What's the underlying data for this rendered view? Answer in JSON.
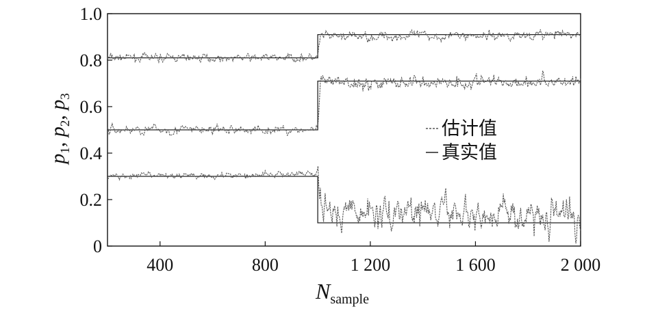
{
  "chart_data": {
    "type": "line",
    "xlabel": "N",
    "xlabel_sub": "sample",
    "ylabel": [
      "p",
      "1",
      ", ",
      "p",
      "2",
      ", ",
      "p",
      "3"
    ],
    "xlim": [
      200,
      2000
    ],
    "ylim": [
      0,
      1.0
    ],
    "xticks": [
      400,
      800,
      1200,
      1600,
      2000
    ],
    "xtick_labels": [
      "400",
      "800",
      "1 200",
      "1 600",
      "2 000"
    ],
    "yticks": [
      0,
      0.2,
      0.4,
      0.6,
      0.8,
      1.0
    ],
    "ytick_labels": [
      "0",
      "0.2",
      "0.4",
      "0.6",
      "0.8",
      "1.0"
    ],
    "legend": [
      {
        "label": "估计值",
        "style": "dashed"
      },
      {
        "label": "真实值",
        "style": "solid"
      }
    ],
    "legend_position": "center-right",
    "noise_seed": 7,
    "series": [
      {
        "role": "true",
        "points": [
          [
            200,
            0.81
          ],
          [
            1000,
            0.81
          ],
          [
            1000,
            0.91
          ],
          [
            2000,
            0.91
          ]
        ]
      },
      {
        "role": "true",
        "points": [
          [
            200,
            0.5
          ],
          [
            1000,
            0.5
          ],
          [
            1000,
            0.71
          ],
          [
            2000,
            0.71
          ]
        ]
      },
      {
        "role": "true",
        "points": [
          [
            200,
            0.3
          ],
          [
            1000,
            0.3
          ],
          [
            1000,
            0.1
          ],
          [
            2000,
            0.1
          ]
        ]
      },
      {
        "role": "estimate",
        "noise": 0.01,
        "noise_after_1000": 0.012,
        "points": [
          [
            200,
            0.81
          ],
          [
            1000,
            0.81
          ],
          [
            1010,
            0.9
          ],
          [
            2000,
            0.91
          ]
        ]
      },
      {
        "role": "estimate",
        "noise": 0.012,
        "noise_after_1000": 0.018,
        "points": [
          [
            200,
            0.5
          ],
          [
            1000,
            0.5
          ],
          [
            1010,
            0.7
          ],
          [
            2000,
            0.71
          ]
        ]
      },
      {
        "role": "estimate",
        "noise": 0.008,
        "noise_after_1000": 0.045,
        "points": [
          [
            200,
            0.3
          ],
          [
            1000,
            0.31
          ],
          [
            1015,
            0.15
          ],
          [
            2000,
            0.13
          ]
        ]
      }
    ]
  }
}
